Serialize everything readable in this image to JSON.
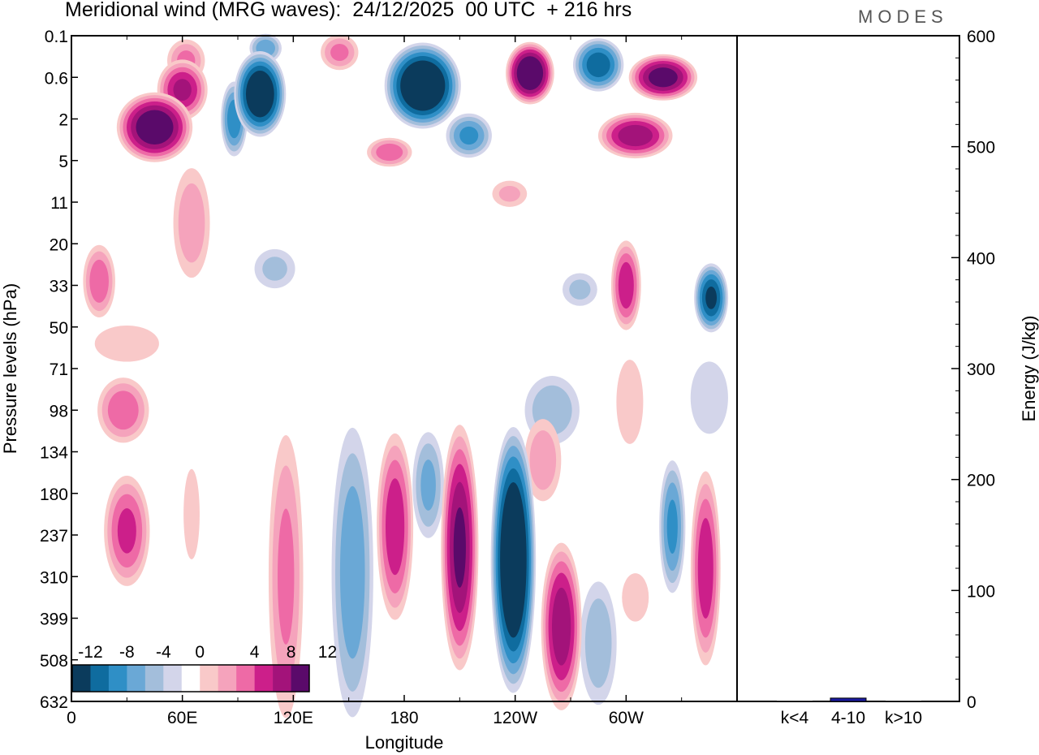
{
  "header": {
    "title": "Meridional wind (MRG waves):  24/12/2025  00 UTC  + 216 hrs",
    "brand": "MODES"
  },
  "colors": {
    "neg": [
      "#0b3b5c",
      "#0f6c9f",
      "#2f8fc6",
      "#6aa8d6",
      "#a3bedb",
      "#d3d5ea"
    ],
    "zero": "#ffffff",
    "pos": [
      "#f9c9c9",
      "#f5a3bc",
      "#ee6aa6",
      "#cc1f8a",
      "#a3137a",
      "#5a0a6a"
    ],
    "bar": "#1a1aa0"
  },
  "chart_data": [
    {
      "type": "heatmap",
      "title": "Meridional wind (MRG waves):  24/12/2025  00 UTC  + 216 hrs",
      "xlabel": "Longitude",
      "ylabel": "Pressure levels (hPa)",
      "x_ticks": [
        "0",
        "60E",
        "120E",
        "180",
        "120W",
        "60W"
      ],
      "x_tick_degrees": [
        0,
        60,
        120,
        180,
        240,
        300
      ],
      "x_range_degrees": [
        0,
        360
      ],
      "y_ticks": [
        "0.1",
        "0.6",
        "2",
        "5",
        "11",
        "20",
        "33",
        "50",
        "71",
        "98",
        "134",
        "180",
        "237",
        "310",
        "399",
        "508",
        "632"
      ],
      "colorbar_labels": [
        "-12",
        "-8",
        "-4",
        "0",
        "4",
        "8",
        "12"
      ],
      "colorbar_levels": [
        -12,
        -10,
        -8,
        -6,
        -4,
        -2,
        2,
        4,
        6,
        8,
        10,
        12
      ],
      "features": [
        {
          "lon": 45,
          "level": 2.2,
          "value": 14,
          "half_width_lon": 22,
          "half_height_lev": 0.9
        },
        {
          "lon": 60,
          "level": 1.3,
          "value": 10,
          "half_width_lon": 15,
          "half_height_lev": 0.8
        },
        {
          "lon": 62,
          "level": 0.6,
          "value": 6,
          "half_width_lon": 12,
          "half_height_lev": 0.6
        },
        {
          "lon": 102,
          "level": 1.4,
          "value": -15,
          "half_width_lon": 15,
          "half_height_lev": 1.1
        },
        {
          "lon": 88,
          "level": 2.0,
          "value": -9,
          "half_width_lon": 8,
          "half_height_lev": 1.0
        },
        {
          "lon": 105,
          "level": 0.3,
          "value": -7,
          "half_width_lon": 10,
          "half_height_lev": 0.4
        },
        {
          "lon": 145,
          "level": 0.4,
          "value": 6,
          "half_width_lon": 12,
          "half_height_lev": 0.5
        },
        {
          "lon": 190,
          "level": 1.2,
          "value": -16,
          "half_width_lon": 22,
          "half_height_lev": 1.1
        },
        {
          "lon": 215,
          "level": 2.4,
          "value": -8,
          "half_width_lon": 14,
          "half_height_lev": 0.6
        },
        {
          "lon": 248,
          "level": 0.9,
          "value": 15,
          "half_width_lon": 14,
          "half_height_lev": 0.8
        },
        {
          "lon": 285,
          "level": 0.7,
          "value": -11,
          "half_width_lon": 15,
          "half_height_lev": 0.7
        },
        {
          "lon": 320,
          "level": 1.0,
          "value": 13,
          "half_width_lon": 20,
          "half_height_lev": 0.6
        },
        {
          "lon": 305,
          "level": 2.4,
          "value": 11,
          "half_width_lon": 22,
          "half_height_lev": 0.6
        },
        {
          "lon": 172,
          "level": 2.8,
          "value": 7,
          "half_width_lon": 14,
          "half_height_lev": 0.4
        },
        {
          "lon": 237,
          "level": 3.8,
          "value": 4,
          "half_width_lon": 12,
          "half_height_lev": 0.4
        },
        {
          "lon": 110,
          "level": 5.6,
          "value": -4,
          "half_width_lon": 14,
          "half_height_lev": 0.6
        },
        {
          "lon": 15,
          "level": 5.9,
          "value": 7,
          "half_width_lon": 10,
          "half_height_lev": 1.0
        },
        {
          "lon": 65,
          "level": 4.5,
          "value": 5,
          "half_width_lon": 12,
          "half_height_lev": 1.6
        },
        {
          "lon": 300,
          "level": 6.0,
          "value": 9,
          "half_width_lon": 9,
          "half_height_lev": 1.2
        },
        {
          "lon": 346,
          "level": 6.3,
          "value": -12,
          "half_width_lon": 10,
          "half_height_lev": 0.9
        },
        {
          "lon": 275,
          "level": 6.1,
          "value": -4,
          "half_width_lon": 12,
          "half_height_lev": 0.5
        },
        {
          "lon": 30,
          "level": 7.4,
          "value": 3,
          "half_width_lon": 24,
          "half_height_lev": 0.6
        },
        {
          "lon": 302,
          "level": 8.8,
          "value": 3,
          "half_width_lon": 10,
          "half_height_lev": 1.4
        },
        {
          "lon": 345,
          "level": 8.7,
          "value": -3,
          "half_width_lon": 14,
          "half_height_lev": 1.2
        },
        {
          "lon": 28,
          "level": 9.0,
          "value": 7,
          "half_width_lon": 16,
          "half_height_lev": 0.9
        },
        {
          "lon": 260,
          "level": 9.0,
          "value": -5,
          "half_width_lon": 18,
          "half_height_lev": 1.0
        },
        {
          "lon": 30,
          "level": 11.9,
          "value": 8,
          "half_width_lon": 14,
          "half_height_lev": 1.5
        },
        {
          "lon": 65,
          "level": 11.5,
          "value": 3,
          "half_width_lon": 6,
          "half_height_lev": 1.5
        },
        {
          "lon": 116,
          "level": 13.0,
          "value": 6,
          "half_width_lon": 11,
          "half_height_lev": 4.0
        },
        {
          "lon": 152,
          "level": 12.9,
          "value": -7,
          "half_width_lon": 13,
          "half_height_lev": 4.0
        },
        {
          "lon": 175,
          "level": 11.8,
          "value": 9,
          "half_width_lon": 11,
          "half_height_lev": 2.5
        },
        {
          "lon": 193,
          "level": 10.8,
          "value": -6,
          "half_width_lon": 10,
          "half_height_lev": 1.5
        },
        {
          "lon": 210,
          "level": 12.3,
          "value": 12,
          "half_width_lon": 11,
          "half_height_lev": 3.2
        },
        {
          "lon": 239,
          "level": 12.6,
          "value": -16,
          "half_width_lon": 13,
          "half_height_lev": 3.4
        },
        {
          "lon": 265,
          "level": 14.2,
          "value": 11,
          "half_width_lon": 12,
          "half_height_lev": 2.2
        },
        {
          "lon": 255,
          "level": 10.2,
          "value": 5,
          "half_width_lon": 12,
          "half_height_lev": 1.2
        },
        {
          "lon": 285,
          "level": 14.6,
          "value": -5,
          "half_width_lon": 12,
          "half_height_lev": 1.8
        },
        {
          "lon": 325,
          "level": 11.8,
          "value": -8,
          "half_width_lon": 8,
          "half_height_lev": 1.8
        },
        {
          "lon": 343,
          "level": 12.8,
          "value": 9,
          "half_width_lon": 9,
          "half_height_lev": 2.6
        },
        {
          "lon": 305,
          "level": 13.5,
          "value": 3,
          "half_width_lon": 10,
          "half_height_lev": 0.8
        }
      ]
    },
    {
      "type": "bar",
      "categories": [
        "k<4",
        "4-10",
        "k>10"
      ],
      "values": [
        0.5,
        3,
        0.5
      ],
      "ylabel": "Energy (J/kg)",
      "ylim": [
        0,
        600
      ],
      "y_ticks": [
        "0",
        "100",
        "200",
        "300",
        "400",
        "500",
        "600"
      ]
    }
  ]
}
